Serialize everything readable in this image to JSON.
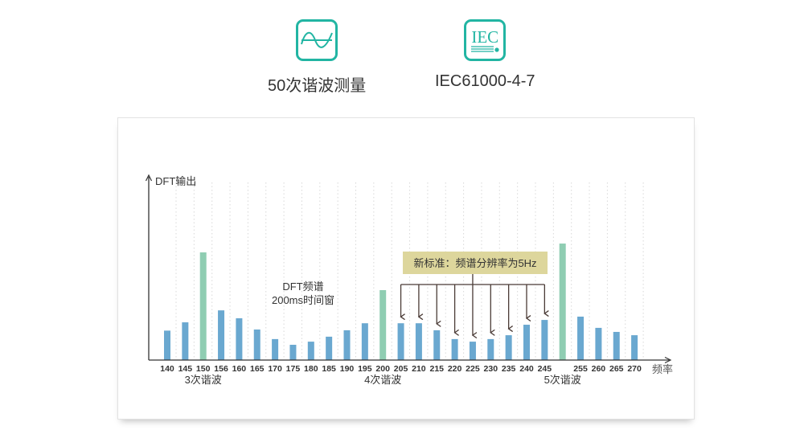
{
  "features": [
    {
      "label": "50次谐波测量",
      "icon": "sine-wave-icon"
    },
    {
      "label": "IEC61000-4-7",
      "icon": "iec-logo-icon",
      "logo_text": "IEC"
    }
  ],
  "colors": {
    "accent": "#22b5a3",
    "bar": "#6aa8d0",
    "harmonic_bar": "#8fcdb2",
    "annotation_box": "#ddd69c",
    "arrow": "#4a3b36"
  },
  "chart_data": {
    "type": "bar",
    "ylabel": "DFT输出",
    "xlabel": "频率",
    "categories": [
      "140",
      "145",
      "150",
      "156",
      "160",
      "165",
      "170",
      "175",
      "180",
      "185",
      "190",
      "195",
      "200",
      "205",
      "210",
      "215",
      "220",
      "225",
      "230",
      "235",
      "240",
      "245",
      "",
      "255",
      "260",
      "265",
      "270"
    ],
    "values": [
      16,
      20.5,
      58.5,
      27,
      22.7,
      16.6,
      11.4,
      8.3,
      10,
      12.7,
      16.2,
      20,
      38,
      20,
      20,
      16.2,
      11.4,
      10,
      11.4,
      13.5,
      19.2,
      21.8,
      63.3,
      23.6,
      17.5,
      15.3,
      13.5
    ],
    "highlighted": [
      2,
      12,
      22
    ],
    "ylim": [
      0,
      100
    ],
    "grid": "vertical-dotted",
    "group_labels": [
      {
        "text": "3次谐波",
        "at": 2
      },
      {
        "text": "4次谐波",
        "at": 12
      },
      {
        "text": "5次谐波",
        "at": 22
      }
    ],
    "annotations": {
      "window_line1": "DFT频谱",
      "window_line2": "200ms时间窗",
      "box": "新标准：频谱分辨率为5Hz",
      "arrow_targets": [
        13,
        14,
        15,
        16,
        17,
        18,
        19,
        20,
        21
      ]
    }
  }
}
